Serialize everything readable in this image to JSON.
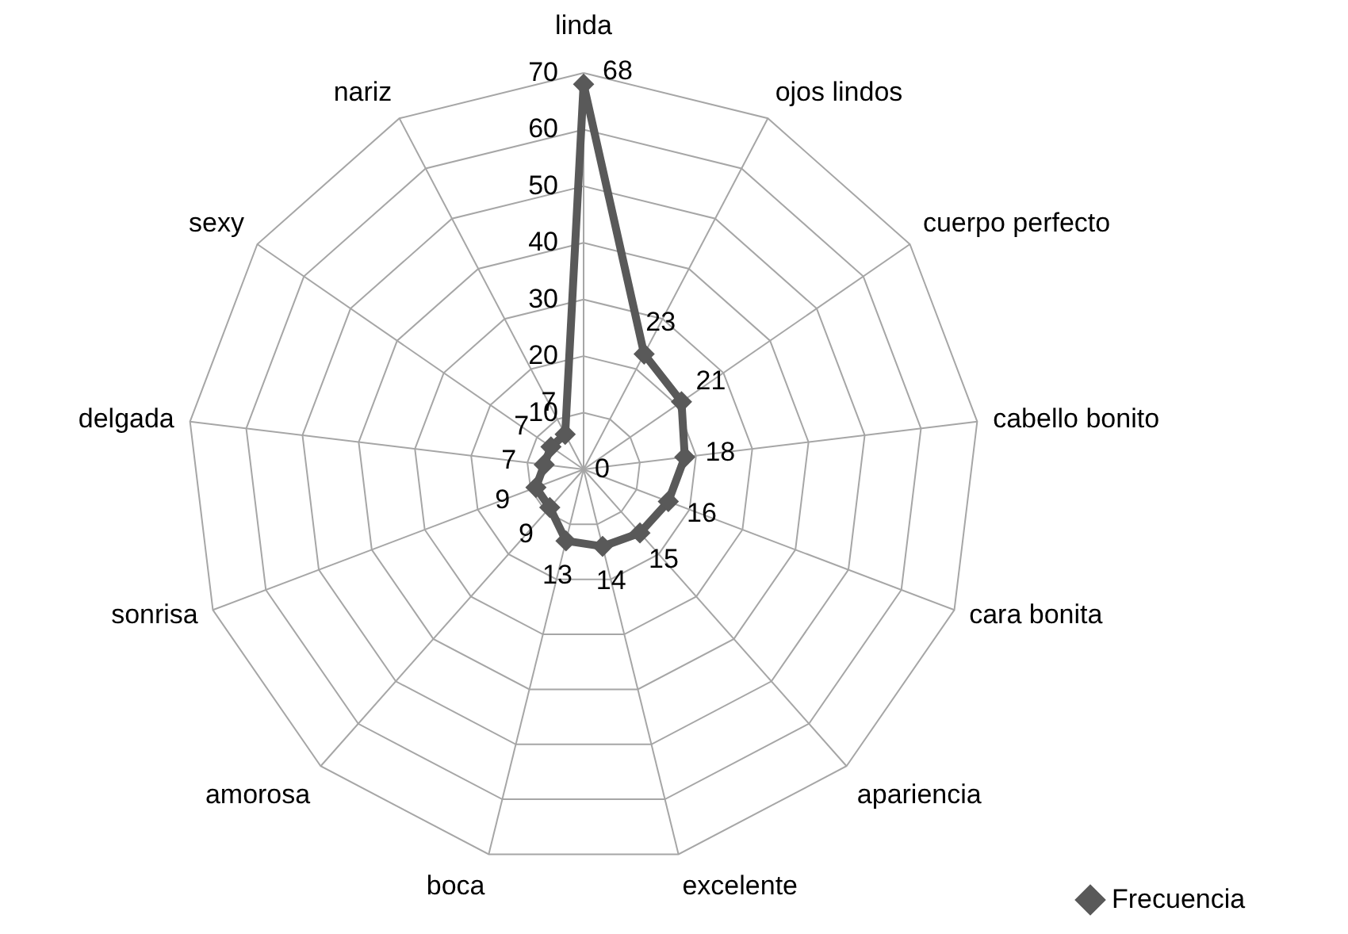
{
  "chart_data": {
    "type": "radar",
    "categories": [
      "linda",
      "ojos lindos",
      "cuerpo perfecto",
      "cabello bonito",
      "cara bonita",
      "apariencia",
      "excelente",
      "boca",
      "amorosa",
      "sonrisa",
      "delgada",
      "sexy",
      "nariz"
    ],
    "series": [
      {
        "name": "Frecuencia",
        "color": "#595959",
        "values": [
          68,
          23,
          21,
          18,
          16,
          15,
          14,
          13,
          9,
          9,
          7,
          7,
          7
        ]
      }
    ],
    "ylim": [
      0,
      70
    ],
    "yticks": [
      0,
      10,
      20,
      30,
      40,
      50,
      60,
      70
    ],
    "grid": true,
    "legend": "bottom right",
    "marker": "diamond",
    "data_labels": true
  }
}
